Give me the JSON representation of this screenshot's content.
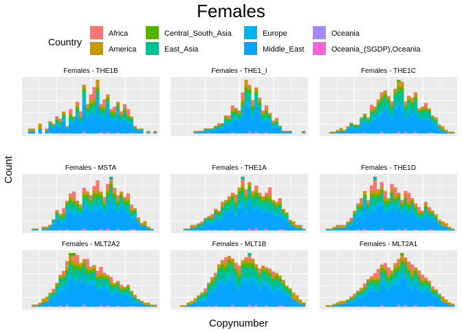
{
  "chart_data": {
    "type": "bar",
    "subtype": "stacked-histogram-facets",
    "title": "Females",
    "xlabel": "Copynumber",
    "ylabel": "Count",
    "grid": true,
    "axis_tick_labels": "none",
    "legend": {
      "title": "Country",
      "placement": "top",
      "entries": [
        {
          "name": "Africa",
          "color": "#F8766D"
        },
        {
          "name": "America",
          "color": "#C49A00"
        },
        {
          "name": "Central_South_Asia",
          "color": "#53B400"
        },
        {
          "name": "East_Asia",
          "color": "#00C094"
        },
        {
          "name": "Europe",
          "color": "#00B6EB"
        },
        {
          "name": "Middle_East",
          "color": "#06A4FF"
        },
        {
          "name": "Oceania",
          "color": "#A58AFF"
        },
        {
          "name": "Oceania_(SGDP),Oceania",
          "color": "#FB61D7"
        }
      ]
    },
    "panels": [
      {
        "label": "Females - THE1B",
        "totals": [
          0,
          2,
          2,
          0,
          4,
          0,
          2,
          5,
          4,
          7,
          6,
          9,
          3,
          10,
          7,
          13,
          9,
          20,
          12,
          16,
          19,
          22,
          12,
          14,
          16,
          10,
          11,
          13,
          9,
          12,
          10,
          7,
          3,
          2,
          2,
          0,
          1,
          0,
          1
        ],
        "peak_color": "#C49A00"
      },
      {
        "label": "Females - THE1_I",
        "totals": [
          0,
          0,
          0,
          0,
          0,
          0,
          1,
          1,
          1,
          2,
          2,
          2,
          3,
          4,
          4,
          7,
          7,
          11,
          10,
          9,
          16,
          21,
          19,
          13,
          18,
          14,
          9,
          11,
          8,
          5,
          6,
          3,
          1,
          1,
          1,
          0,
          0,
          0,
          1
        ],
        "peak_color": "#C49A00"
      },
      {
        "label": "Females - THE1C",
        "totals": [
          0,
          0,
          1,
          1,
          2,
          3,
          2,
          4,
          6,
          5,
          5,
          9,
          11,
          9,
          16,
          15,
          19,
          23,
          24,
          21,
          18,
          25,
          30,
          29,
          18,
          21,
          20,
          23,
          14,
          15,
          17,
          14,
          10,
          9,
          5,
          4,
          2,
          1,
          1
        ],
        "peak_color": "#53B400"
      },
      {
        "label": "Females - MSTA",
        "totals": [
          0,
          0,
          1,
          1,
          0,
          2,
          2,
          3,
          6,
          11,
          9,
          12,
          16,
          20,
          21,
          16,
          14,
          23,
          21,
          19,
          24,
          27,
          21,
          18,
          25,
          29,
          23,
          19,
          21,
          18,
          20,
          14,
          12,
          7,
          4,
          5,
          2,
          1,
          0
        ],
        "peak_color": "#00C094"
      },
      {
        "label": "Females - THE1A",
        "totals": [
          0,
          0,
          0,
          1,
          1,
          3,
          3,
          4,
          5,
          7,
          8,
          9,
          12,
          11,
          16,
          17,
          19,
          21,
          20,
          24,
          30,
          23,
          27,
          22,
          25,
          21,
          19,
          21,
          24,
          17,
          16,
          18,
          12,
          10,
          6,
          5,
          3,
          3,
          1
        ],
        "peak_color": "#00C094"
      },
      {
        "label": "Females - THE1D",
        "totals": [
          0,
          1,
          1,
          2,
          3,
          3,
          3,
          5,
          7,
          11,
          15,
          18,
          22,
          17,
          25,
          30,
          23,
          27,
          22,
          18,
          26,
          24,
          21,
          17,
          22,
          21,
          18,
          15,
          13,
          11,
          16,
          13,
          11,
          9,
          6,
          5,
          4,
          2,
          1
        ],
        "peak_color": "#00C094"
      },
      {
        "label": "Females - MLT2A2",
        "totals": [
          0,
          0,
          1,
          1,
          2,
          4,
          5,
          7,
          9,
          12,
          16,
          18,
          23,
          27,
          27,
          26,
          22,
          24,
          24,
          20,
          21,
          18,
          20,
          17,
          16,
          15,
          12,
          13,
          11,
          10,
          11,
          8,
          6,
          4,
          3,
          2,
          2,
          1,
          1
        ],
        "peak_color": "#53B400"
      },
      {
        "label": "Females - MLT1B",
        "totals": [
          0,
          0,
          1,
          1,
          3,
          4,
          6,
          8,
          10,
          13,
          17,
          21,
          24,
          30,
          33,
          35,
          36,
          34,
          31,
          29,
          33,
          35,
          38,
          34,
          30,
          27,
          29,
          28,
          27,
          25,
          24,
          22,
          19,
          15,
          13,
          10,
          8,
          5,
          3
        ],
        "peak_color": "#00C094"
      },
      {
        "label": "Females - MLT2A1",
        "totals": [
          0,
          1,
          1,
          2,
          3,
          4,
          4,
          5,
          7,
          9,
          11,
          13,
          16,
          19,
          21,
          23,
          26,
          29,
          30,
          27,
          25,
          30,
          33,
          37,
          34,
          31,
          29,
          27,
          25,
          22,
          20,
          18,
          14,
          12,
          9,
          7,
          5,
          3,
          2
        ],
        "peak_color": "#53B400"
      }
    ]
  }
}
